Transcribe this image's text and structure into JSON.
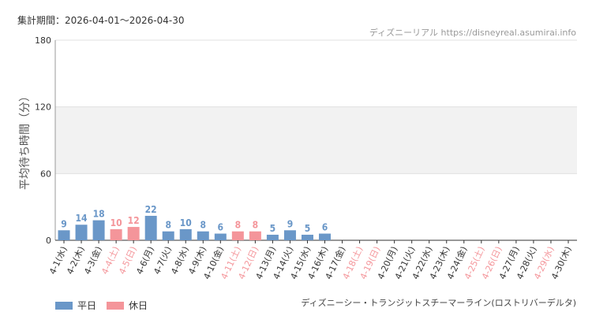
{
  "header": {
    "period_label": "集計期間：2026-04-01〜2026-04-30",
    "credit": "ディズニーリアル https://disneyreal.asumirai.info"
  },
  "footer": {
    "attraction": "ディズニーシー・トランジットスチーマーライン(ロストリバーデルタ)"
  },
  "legend": {
    "weekday_label": "平日",
    "holiday_label": "休日"
  },
  "colors": {
    "weekday": "#6a97c8",
    "holiday": "#f4959a",
    "band": "#f2f2f2",
    "axis": "#333333"
  },
  "chart_data": {
    "type": "bar",
    "ylabel": "平均待ち時間（分）",
    "ylim": [
      0,
      180
    ],
    "yticks": [
      0,
      60,
      120,
      180
    ],
    "shaded_band": [
      60,
      120
    ],
    "categories": [
      "4-1(水)",
      "4-2(木)",
      "4-3(金)",
      "4-4(土)",
      "4-5(日)",
      "4-6(月)",
      "4-7(火)",
      "4-8(水)",
      "4-9(木)",
      "4-10(金)",
      "4-11(土)",
      "4-12(日)",
      "4-13(月)",
      "4-14(火)",
      "4-15(水)",
      "4-16(木)",
      "4-17(金)",
      "4-18(土)",
      "4-19(日)",
      "4-20(月)",
      "4-21(火)",
      "4-22(水)",
      "4-23(木)",
      "4-24(金)",
      "4-25(土)",
      "4-26(日)",
      "4-27(月)",
      "4-28(火)",
      "4-29(水)",
      "4-30(木)"
    ],
    "values": [
      9,
      14,
      18,
      10,
      12,
      22,
      8,
      10,
      8,
      6,
      8,
      8,
      5,
      9,
      5,
      6,
      null,
      null,
      null,
      null,
      null,
      null,
      null,
      null,
      null,
      null,
      null,
      null,
      null,
      null
    ],
    "holiday": [
      false,
      false,
      false,
      true,
      true,
      false,
      false,
      false,
      false,
      false,
      true,
      true,
      false,
      false,
      false,
      false,
      false,
      true,
      true,
      false,
      false,
      false,
      false,
      false,
      true,
      true,
      false,
      false,
      true,
      false
    ],
    "legend_placement": "bottom-left"
  }
}
